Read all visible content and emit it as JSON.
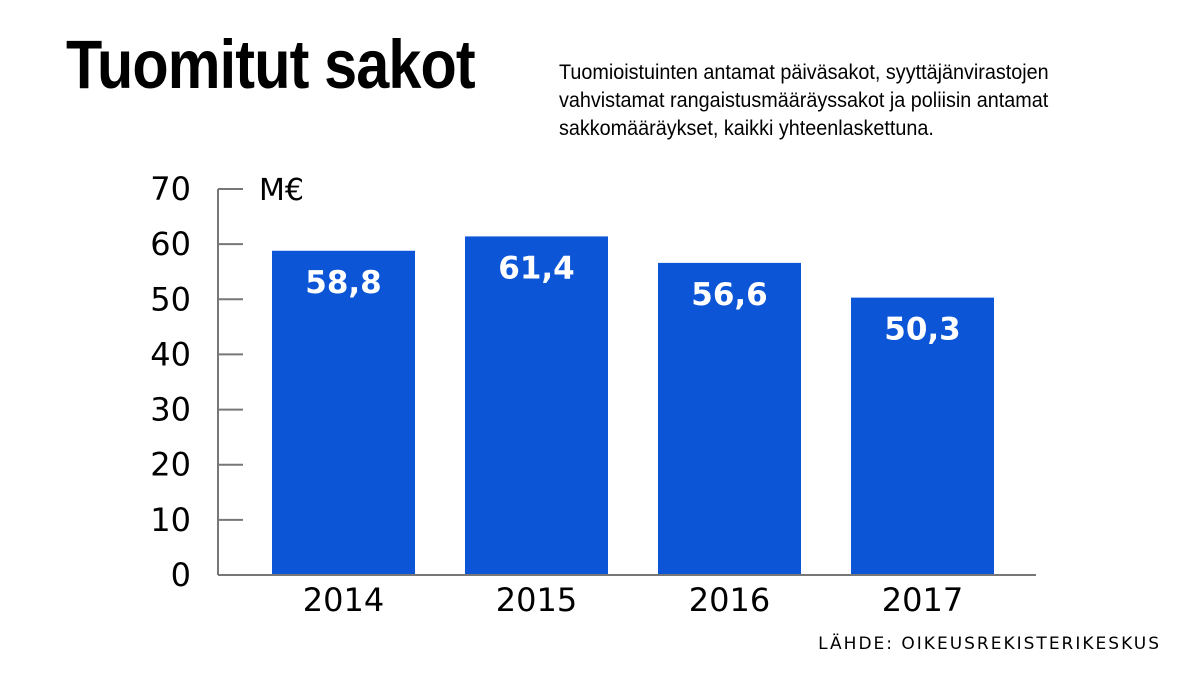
{
  "header": {
    "title": "Tuomitut sakot",
    "subtitle": "Tuomioistuinten antamat päiväsakot, syyttäjänvirastojen\nvahvistamat rangaistusmääräyssakot ja poliisin antamat\nsakkomääräykset, kaikki yhteenlaskettuna."
  },
  "footer": {
    "source": "LÄHDE: OIKEUSREKISTERIKESKUS"
  },
  "chart_data": {
    "type": "bar",
    "title": "Tuomitut sakot",
    "subtitle": "Tuomioistuinten antamat päiväsakot, syyttäjänvirastojen vahvistamat rangaistusmääräyssakot ja poliisin antamat sakkomääräykset, kaikki yhteenlaskettuna.",
    "categories": [
      "2014",
      "2015",
      "2016",
      "2017"
    ],
    "values": [
      58.8,
      61.4,
      56.6,
      50.3
    ],
    "value_labels": [
      "58,8",
      "61,4",
      "56,6",
      "50,3"
    ],
    "unit": "M€",
    "xlabel": "",
    "ylabel": "",
    "ylim": [
      0,
      70
    ],
    "yticks": [
      0,
      10,
      20,
      30,
      40,
      50,
      60,
      70
    ],
    "grid": false,
    "legend": "none",
    "bar_color": "#0b55d6",
    "axis_color": "#777777",
    "text_color": "#000000",
    "value_label_color": "#ffffff"
  }
}
